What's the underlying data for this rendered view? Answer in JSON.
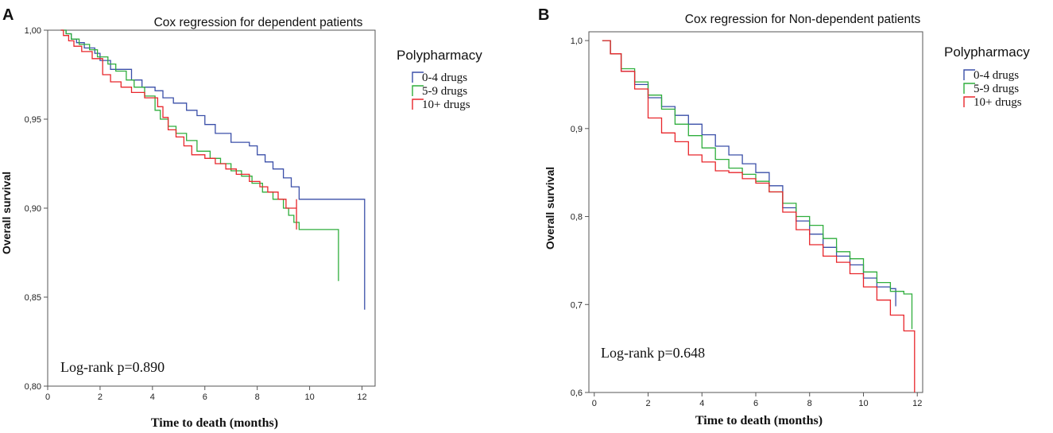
{
  "chart_data": [
    {
      "type": "line",
      "panel_label": "A",
      "title": "Cox regression for dependent patients",
      "xlabel": "Time to death (months)",
      "ylabel": "Overall survival",
      "xlim": [
        0,
        12.5
      ],
      "ylim": [
        0.8,
        1.0
      ],
      "xticks": [
        0,
        2,
        4,
        6,
        8,
        10,
        12
      ],
      "xtick_labels": [
        "0",
        "2",
        "4",
        "6",
        "8",
        "10",
        "12"
      ],
      "yticks": [
        0.8,
        0.85,
        0.9,
        0.95,
        1.0
      ],
      "ytick_labels": [
        "0,80",
        "0,85",
        "0,90",
        "0,95",
        "1,00"
      ],
      "legend_title": "Polypharmacy",
      "annotation": "Log-rank p=0.890",
      "series": [
        {
          "name": "0-4 drugs",
          "color": "#3a4fa8",
          "x": [
            0.5,
            0.7,
            0.9,
            1.1,
            1.4,
            1.8,
            2.0,
            2.4,
            3.2,
            3.6,
            4.1,
            4.4,
            4.8,
            5.3,
            5.7,
            6.0,
            6.4,
            7.0,
            7.7,
            8.0,
            8.3,
            8.6,
            9.0,
            9.3,
            9.6,
            12.1,
            12.1
          ],
          "y": [
            1.0,
            0.998,
            0.995,
            0.993,
            0.99,
            0.987,
            0.983,
            0.978,
            0.972,
            0.968,
            0.966,
            0.962,
            0.959,
            0.955,
            0.952,
            0.947,
            0.942,
            0.937,
            0.935,
            0.93,
            0.926,
            0.922,
            0.917,
            0.912,
            0.905,
            0.894,
            0.843
          ]
        },
        {
          "name": "5-9 drugs",
          "color": "#2fae3c",
          "x": [
            0.5,
            0.7,
            0.9,
            1.2,
            1.6,
            1.9,
            2.3,
            2.6,
            3.0,
            3.3,
            3.7,
            4.1,
            4.3,
            4.6,
            4.9,
            5.3,
            5.7,
            6.2,
            6.6,
            7.0,
            7.4,
            7.8,
            8.2,
            8.6,
            9.0,
            9.2,
            9.4,
            9.6,
            11.1,
            11.1
          ],
          "y": [
            1.0,
            0.998,
            0.995,
            0.992,
            0.989,
            0.985,
            0.981,
            0.977,
            0.972,
            0.968,
            0.963,
            0.955,
            0.95,
            0.946,
            0.942,
            0.938,
            0.932,
            0.928,
            0.925,
            0.921,
            0.918,
            0.914,
            0.909,
            0.905,
            0.9,
            0.896,
            0.892,
            0.888,
            0.888,
            0.859
          ]
        },
        {
          "name": "10+ drugs",
          "color": "#e8262b",
          "x": [
            0.5,
            0.6,
            0.8,
            1.0,
            1.3,
            1.7,
            2.1,
            2.4,
            2.8,
            3.2,
            3.7,
            4.2,
            4.4,
            4.6,
            4.9,
            5.2,
            5.5,
            6.0,
            6.4,
            6.8,
            7.2,
            7.7,
            8.1,
            8.4,
            8.8,
            9.1,
            9.5,
            9.5
          ],
          "y": [
            1.0,
            0.997,
            0.994,
            0.991,
            0.988,
            0.984,
            0.975,
            0.971,
            0.968,
            0.965,
            0.962,
            0.957,
            0.951,
            0.944,
            0.94,
            0.935,
            0.93,
            0.928,
            0.925,
            0.922,
            0.919,
            0.915,
            0.912,
            0.909,
            0.905,
            0.9,
            0.905,
            0.888
          ]
        }
      ]
    },
    {
      "type": "line",
      "panel_label": "B",
      "title": "Cox regression for Non-dependent patients",
      "xlabel": "Time to death (months)",
      "ylabel": "Overall survival",
      "xlim": [
        -0.2,
        12.2
      ],
      "ylim": [
        0.6,
        1.01
      ],
      "xticks": [
        0,
        2,
        4,
        6,
        8,
        10,
        12
      ],
      "xtick_labels": [
        "0",
        "2",
        "4",
        "6",
        "8",
        "10",
        "12"
      ],
      "yticks": [
        0.6,
        0.7,
        0.8,
        0.9,
        1.0
      ],
      "ytick_labels": [
        "0,6",
        "0,7",
        "0,8",
        "0,9",
        "1,0"
      ],
      "legend_title": "Polypharmacy",
      "annotation": "Log-rank p=0.648",
      "series": [
        {
          "name": "0-4 drugs",
          "color": "#3a4fa8",
          "x": [
            0.3,
            0.6,
            1.0,
            1.5,
            2.0,
            2.5,
            3.0,
            3.5,
            4.0,
            4.5,
            5.0,
            5.5,
            6.0,
            6.5,
            7.0,
            7.5,
            8.0,
            8.5,
            9.0,
            9.5,
            10.0,
            10.5,
            11.0,
            11.2,
            11.2
          ],
          "y": [
            1.0,
            0.985,
            0.965,
            0.95,
            0.935,
            0.925,
            0.915,
            0.905,
            0.893,
            0.88,
            0.87,
            0.86,
            0.85,
            0.835,
            0.81,
            0.795,
            0.78,
            0.765,
            0.755,
            0.745,
            0.73,
            0.72,
            0.718,
            0.718,
            0.698
          ]
        },
        {
          "name": "5-9 drugs",
          "color": "#2fae3c",
          "x": [
            0.3,
            0.6,
            1.0,
            1.5,
            2.0,
            2.5,
            3.0,
            3.5,
            4.0,
            4.5,
            5.0,
            5.5,
            6.0,
            6.5,
            7.0,
            7.5,
            8.0,
            8.5,
            9.0,
            9.5,
            10.0,
            10.5,
            11.0,
            11.5,
            11.8,
            11.8
          ],
          "y": [
            1.0,
            0.985,
            0.968,
            0.953,
            0.938,
            0.922,
            0.905,
            0.892,
            0.878,
            0.865,
            0.855,
            0.848,
            0.84,
            0.828,
            0.815,
            0.8,
            0.79,
            0.775,
            0.76,
            0.752,
            0.737,
            0.725,
            0.715,
            0.712,
            0.712,
            0.672
          ]
        },
        {
          "name": "10+ drugs",
          "color": "#e8262b",
          "x": [
            0.3,
            0.6,
            1.0,
            1.5,
            2.0,
            2.5,
            3.0,
            3.5,
            4.0,
            4.5,
            5.0,
            5.5,
            6.0,
            6.5,
            7.0,
            7.5,
            8.0,
            8.5,
            9.0,
            9.5,
            10.0,
            10.5,
            11.0,
            11.5,
            11.9,
            11.9
          ],
          "y": [
            1.0,
            0.985,
            0.965,
            0.945,
            0.912,
            0.895,
            0.885,
            0.87,
            0.862,
            0.852,
            0.85,
            0.843,
            0.838,
            0.828,
            0.805,
            0.785,
            0.768,
            0.755,
            0.748,
            0.735,
            0.72,
            0.705,
            0.688,
            0.67,
            0.67,
            0.6
          ]
        }
      ]
    }
  ]
}
